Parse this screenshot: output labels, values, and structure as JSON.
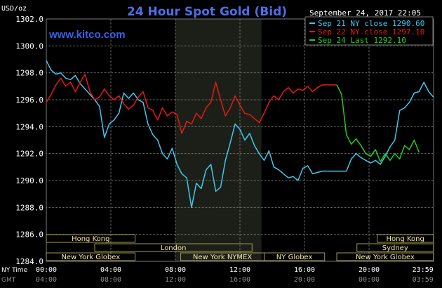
{
  "header": {
    "title": "24 Hour Spot Gold (Bid)",
    "unit": "USD/oz",
    "timestamp": "September 24, 2017 22:05",
    "site": "www.kitco.com"
  },
  "colors": {
    "background": "#000000",
    "plot_background": "#000000",
    "night_shade": "#1b1f17",
    "grid": "#7a7a7a",
    "title": "#4d6fe8",
    "site": "#3a5fe8",
    "series_sep21": "#3fc8f0",
    "series_sep22": "#e81818",
    "series_sep24": "#1ecf1e",
    "text": "#ffffff",
    "market_bar": "#f3e9a6",
    "market_border": "#a59a4f"
  },
  "legend": [
    {
      "label": "Sep 21 NY close 1290.60",
      "color": "#3fc8f0"
    },
    {
      "label": "Sep 22 NY close 1297.10",
      "color": "#e81818"
    },
    {
      "label": "Sep 24 Last 1292.10",
      "color": "#1ecf1e"
    }
  ],
  "time_axis": {
    "row_ny_label": "NY Time",
    "row_gmt_label": "GMT",
    "ny_ticks": [
      "00:00",
      "04:00",
      "08:00",
      "12:00",
      "16:00",
      "20:00",
      "23:59"
    ],
    "gmt_ticks": [
      "04:00",
      "08:00",
      "12:00",
      "16:00",
      "20:00",
      "00:00",
      "03:59"
    ]
  },
  "markets": [
    {
      "label": "Hong Kong",
      "start_h": 0,
      "end_h": 5.5,
      "row": 0
    },
    {
      "label": "London",
      "start_h": 3,
      "end_h": 12.75,
      "row": 1
    },
    {
      "label": "New York Globex",
      "start_h": 0,
      "end_h": 5.5,
      "row": 2
    },
    {
      "label": "New York NYMEX",
      "start_h": 8.33,
      "end_h": 13.5,
      "row": 2
    },
    {
      "label": "NY Globex",
      "start_h": 13.5,
      "end_h": 17.25,
      "row": 2
    },
    {
      "label": "Hong Kong",
      "start_h": 20.5,
      "end_h": 23.99,
      "row": 0
    },
    {
      "label": "Sydney",
      "start_h": 19.25,
      "end_h": 23.99,
      "row": 1
    },
    {
      "label": "New York Globex",
      "start_h": 18,
      "end_h": 23.99,
      "row": 2
    }
  ],
  "chart_data": {
    "type": "line",
    "title": "24 Hour Spot Gold (Bid)",
    "xlabel": "NY Time",
    "ylabel": "USD/oz",
    "xlim": [
      0,
      24
    ],
    "ylim": [
      1284.0,
      1302.0
    ],
    "yticks": [
      "1302.0",
      "1300.0",
      "1298.0",
      "1296.0",
      "1294.0",
      "1292.0",
      "1290.0",
      "1288.0",
      "1286.0",
      "1284.0"
    ],
    "night_shade_hours": [
      8,
      13.33
    ],
    "series": [
      {
        "name": "Sep 21 NY close 1290.60",
        "x": [
          0,
          0.3,
          0.6,
          0.9,
          1.2,
          1.5,
          1.8,
          2.1,
          2.4,
          2.7,
          3.0,
          3.3,
          3.6,
          3.9,
          4.2,
          4.5,
          4.8,
          5.1,
          5.4,
          5.7,
          6.0,
          6.3,
          6.6,
          6.9,
          7.2,
          7.5,
          7.8,
          8.1,
          8.4,
          8.7,
          9.0,
          9.3,
          9.6,
          9.9,
          10.2,
          10.5,
          10.8,
          11.1,
          11.4,
          11.7,
          12.0,
          12.3,
          12.6,
          12.9,
          13.2,
          13.5,
          13.8,
          14.1,
          14.4,
          14.7,
          15.0,
          15.3,
          15.6,
          15.9,
          16.2,
          16.5,
          16.8,
          17.1,
          17.4,
          17.7,
          18.0,
          18.3,
          18.6,
          18.9,
          19.2,
          19.5,
          19.8,
          20.1,
          20.4,
          20.7,
          21.0,
          21.3,
          21.6,
          21.9,
          22.2,
          22.5,
          22.8,
          23.1,
          23.4,
          23.7,
          23.99
        ],
        "y": [
          1298.9,
          1298.2,
          1297.9,
          1298.0,
          1297.6,
          1297.5,
          1297.8,
          1297.2,
          1296.8,
          1296.4,
          1296.0,
          1295.5,
          1293.2,
          1294.2,
          1294.5,
          1295.0,
          1296.5,
          1296.1,
          1296.5,
          1296.0,
          1295.8,
          1294.2,
          1293.4,
          1293.0,
          1292.0,
          1291.6,
          1292.4,
          1291.2,
          1290.5,
          1290.2,
          1288.0,
          1289.8,
          1289.4,
          1290.8,
          1291.2,
          1289.2,
          1289.5,
          1291.5,
          1292.8,
          1294.2,
          1293.8,
          1293.0,
          1293.5,
          1292.6,
          1292.0,
          1291.5,
          1292.2,
          1291.0,
          1290.8,
          1290.5,
          1290.2,
          1290.3,
          1290.0,
          1290.9,
          1291.1,
          1290.5,
          1290.6,
          1290.7,
          1290.7,
          1290.7,
          1290.7,
          1290.7,
          1290.7,
          1291.6,
          1292.0,
          1291.7,
          1291.5,
          1291.3,
          1291.5,
          1291.2,
          1291.8,
          1292.5,
          1293.0,
          1295.2,
          1295.4,
          1295.8,
          1296.5,
          1296.6,
          1297.3,
          1296.6,
          1296.2
        ]
      },
      {
        "name": "Sep 22 NY close 1297.10",
        "x": [
          0,
          0.3,
          0.6,
          0.9,
          1.2,
          1.5,
          1.8,
          2.1,
          2.4,
          2.7,
          3.0,
          3.3,
          3.6,
          3.9,
          4.2,
          4.5,
          4.8,
          5.1,
          5.4,
          5.7,
          6.0,
          6.3,
          6.6,
          6.9,
          7.2,
          7.5,
          7.8,
          8.1,
          8.4,
          8.7,
          9.0,
          9.3,
          9.6,
          9.9,
          10.2,
          10.5,
          10.8,
          11.1,
          11.4,
          11.7,
          12.0,
          12.3,
          12.6,
          12.9,
          13.2,
          13.5,
          13.8,
          14.1,
          14.4,
          14.7,
          15.0,
          15.3,
          15.6,
          15.9,
          16.2,
          16.5,
          16.8,
          17.1,
          17.4,
          17.7,
          18.0
        ],
        "y": [
          1295.8,
          1296.4,
          1297.1,
          1297.6,
          1297.0,
          1297.3,
          1296.6,
          1297.3,
          1297.9,
          1296.6,
          1296.0,
          1296.2,
          1296.8,
          1296.3,
          1296.0,
          1296.3,
          1295.7,
          1295.3,
          1295.6,
          1296.2,
          1296.6,
          1295.4,
          1295.2,
          1294.5,
          1295.4,
          1294.8,
          1295.1,
          1294.9,
          1293.5,
          1294.4,
          1294.2,
          1295.0,
          1294.6,
          1295.4,
          1295.8,
          1297.3,
          1296.0,
          1294.8,
          1295.4,
          1296.3,
          1295.6,
          1295.0,
          1294.9,
          1294.6,
          1294.3,
          1295.0,
          1295.8,
          1296.3,
          1296.0,
          1296.6,
          1296.9,
          1296.5,
          1296.8,
          1296.7,
          1297.0,
          1296.6,
          1296.9,
          1297.1,
          1297.1,
          1297.1,
          1297.1
        ]
      },
      {
        "name": "Sep 24 Last 1292.10",
        "x": [
          18.0,
          18.3,
          18.6,
          18.9,
          19.2,
          19.5,
          19.8,
          20.1,
          20.4,
          20.7,
          21.0,
          21.3,
          21.6,
          21.9,
          22.2,
          22.5,
          22.8,
          23.1
        ],
        "y": [
          1297.1,
          1296.4,
          1293.4,
          1292.7,
          1293.1,
          1292.6,
          1292.0,
          1291.8,
          1292.3,
          1291.4,
          1292.0,
          1291.5,
          1292.0,
          1291.6,
          1292.6,
          1292.3,
          1293.0,
          1292.1
        ]
      }
    ],
    "legend_placement": "top-right",
    "grid": true
  }
}
